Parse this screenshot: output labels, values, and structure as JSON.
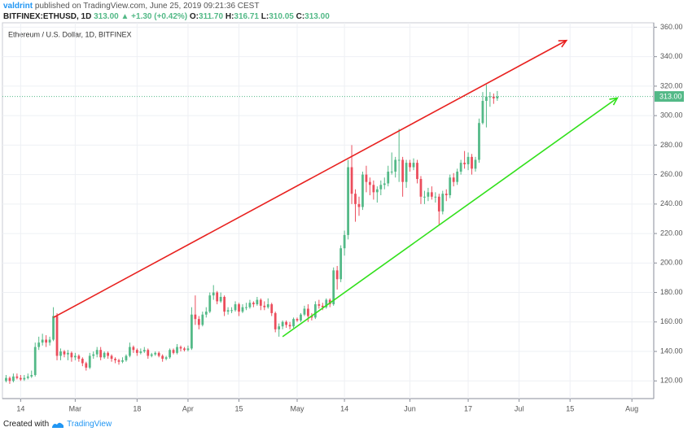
{
  "header": {
    "author": "valdrint",
    "published": "published on TradingView.com, June 25, 2019 09:21:36 CEST",
    "symbol": "BITFINEX:ETHUSD, 1D",
    "last": "313.00",
    "change": "▲ +1.30 (+0.42%)",
    "quote": [
      {
        "label": "O:",
        "value": "311.70"
      },
      {
        "label": "H:",
        "value": "316.71"
      },
      {
        "label": "L:",
        "value": "310.05"
      },
      {
        "label": "C:",
        "value": "313.00"
      }
    ]
  },
  "footer": {
    "text": "Created with",
    "brand": "TradingView"
  },
  "chart_data": {
    "type": "candlestick",
    "title": "Ethereum / U.S. Dollar, 1D, BITFINEX",
    "up_color": "#53b987",
    "down_color": "#eb4d5c",
    "grid": true,
    "xlim": [
      "02-09",
      "08-07"
    ],
    "xticks": [
      {
        "value": "02-14",
        "label": "14"
      },
      {
        "value": "03-01",
        "label": "Mar"
      },
      {
        "value": "03-18",
        "label": "18"
      },
      {
        "value": "04-01",
        "label": "Apr"
      },
      {
        "value": "04-15",
        "label": "15"
      },
      {
        "value": "05-01",
        "label": "May"
      },
      {
        "value": "05-14",
        "label": "14"
      },
      {
        "value": "06-01",
        "label": "Jun"
      },
      {
        "value": "06-17",
        "label": "17"
      },
      {
        "value": "07-01",
        "label": "Jul"
      },
      {
        "value": "07-15",
        "label": "15"
      },
      {
        "value": "08-01",
        "label": "Aug"
      }
    ],
    "ylim": [
      108,
      363
    ],
    "yticks": [
      {
        "value": 120,
        "label": "120.00"
      },
      {
        "value": 140,
        "label": "140.00"
      },
      {
        "value": 160,
        "label": "160.00"
      },
      {
        "value": 180,
        "label": "180.00"
      },
      {
        "value": 200,
        "label": "200.00"
      },
      {
        "value": 220,
        "label": "220.00"
      },
      {
        "value": 240,
        "label": "240.00"
      },
      {
        "value": 260,
        "label": "260.00"
      },
      {
        "value": 280,
        "label": "280.00"
      },
      {
        "value": 300,
        "label": "300.00"
      },
      {
        "value": 320,
        "label": "320.00"
      },
      {
        "value": 340,
        "label": "340.00"
      },
      {
        "value": 360,
        "label": "360.00"
      }
    ],
    "current_price": {
      "value": 313,
      "label": "313.00",
      "color": "#53b987"
    },
    "trend_lines": [
      {
        "color": "#e8211f",
        "x": [
          "02-23",
          "07-14"
        ],
        "y": [
          163,
          351
        ]
      },
      {
        "color": "#32e01c",
        "x": [
          "04-27",
          "07-28"
        ],
        "y": [
          150,
          312
        ]
      }
    ],
    "x": [
      "02-10",
      "02-11",
      "02-12",
      "02-13",
      "02-14",
      "02-15",
      "02-16",
      "02-17",
      "02-18",
      "02-19",
      "02-20",
      "02-21",
      "02-22",
      "02-23",
      "02-24",
      "02-25",
      "02-26",
      "02-27",
      "02-28",
      "03-01",
      "03-02",
      "03-03",
      "03-04",
      "03-05",
      "03-06",
      "03-07",
      "03-08",
      "03-09",
      "03-10",
      "03-11",
      "03-12",
      "03-13",
      "03-14",
      "03-15",
      "03-16",
      "03-17",
      "03-18",
      "03-19",
      "03-20",
      "03-21",
      "03-22",
      "03-23",
      "03-24",
      "03-25",
      "03-26",
      "03-27",
      "03-28",
      "03-29",
      "03-30",
      "03-31",
      "04-01",
      "04-02",
      "04-03",
      "04-04",
      "04-05",
      "04-06",
      "04-07",
      "04-08",
      "04-09",
      "04-10",
      "04-11",
      "04-12",
      "04-13",
      "04-14",
      "04-15",
      "04-16",
      "04-17",
      "04-18",
      "04-19",
      "04-20",
      "04-21",
      "04-22",
      "04-23",
      "04-24",
      "04-25",
      "04-26",
      "04-27",
      "04-28",
      "04-29",
      "04-30",
      "05-01",
      "05-02",
      "05-03",
      "05-04",
      "05-05",
      "05-06",
      "05-07",
      "05-08",
      "05-09",
      "05-10",
      "05-11",
      "05-12",
      "05-13",
      "05-14",
      "05-15",
      "05-16",
      "05-17",
      "05-18",
      "05-19",
      "05-20",
      "05-21",
      "05-22",
      "05-23",
      "05-24",
      "05-25",
      "05-26",
      "05-27",
      "05-28",
      "05-29",
      "05-30",
      "05-31",
      "06-01",
      "06-02",
      "06-03",
      "06-04",
      "06-05",
      "06-06",
      "06-07",
      "06-08",
      "06-09",
      "06-10",
      "06-11",
      "06-12",
      "06-13",
      "06-14",
      "06-15",
      "06-16",
      "06-17",
      "06-18",
      "06-19",
      "06-20",
      "06-21",
      "06-22",
      "06-23",
      "06-24",
      "06-25"
    ],
    "ohlc": [
      [
        120,
        124,
        119,
        122
      ],
      [
        122,
        123,
        118,
        120
      ],
      [
        120,
        125,
        119,
        123
      ],
      [
        123,
        125,
        121,
        122
      ],
      [
        122,
        124,
        120,
        121
      ],
      [
        121,
        124,
        120,
        122
      ],
      [
        122,
        125,
        121,
        123
      ],
      [
        123,
        127,
        122,
        124
      ],
      [
        124,
        146,
        123,
        143
      ],
      [
        143,
        150,
        141,
        146
      ],
      [
        146,
        152,
        144,
        148
      ],
      [
        148,
        151,
        143,
        146
      ],
      [
        146,
        150,
        144,
        148
      ],
      [
        148,
        170,
        147,
        164
      ],
      [
        164,
        166,
        134,
        137
      ],
      [
        137,
        142,
        134,
        140
      ],
      [
        140,
        141,
        136,
        138
      ],
      [
        138,
        141,
        134,
        139
      ],
      [
        139,
        140,
        133,
        136
      ],
      [
        136,
        139,
        134,
        137
      ],
      [
        137,
        138,
        133,
        135
      ],
      [
        135,
        136,
        130,
        132
      ],
      [
        132,
        133,
        127,
        129
      ],
      [
        129,
        139,
        128,
        137
      ],
      [
        137,
        140,
        135,
        138
      ],
      [
        138,
        143,
        136,
        141
      ],
      [
        141,
        143,
        134,
        136
      ],
      [
        136,
        140,
        135,
        139
      ],
      [
        139,
        140,
        135,
        137
      ],
      [
        137,
        138,
        133,
        135
      ],
      [
        135,
        136,
        132,
        134
      ],
      [
        134,
        135,
        131,
        133
      ],
      [
        133,
        136,
        132,
        134
      ],
      [
        134,
        138,
        133,
        137
      ],
      [
        137,
        146,
        136,
        143
      ],
      [
        143,
        144,
        139,
        141
      ],
      [
        141,
        142,
        137,
        139
      ],
      [
        139,
        142,
        138,
        140
      ],
      [
        140,
        143,
        139,
        141
      ],
      [
        141,
        142,
        135,
        137
      ],
      [
        137,
        139,
        136,
        138
      ],
      [
        138,
        140,
        137,
        139
      ],
      [
        139,
        140,
        136,
        137
      ],
      [
        137,
        138,
        133,
        135
      ],
      [
        135,
        137,
        134,
        136
      ],
      [
        136,
        142,
        135,
        141
      ],
      [
        141,
        142,
        138,
        139
      ],
      [
        139,
        145,
        138,
        143
      ],
      [
        143,
        144,
        140,
        142
      ],
      [
        142,
        143,
        140,
        141
      ],
      [
        141,
        144,
        140,
        142
      ],
      [
        142,
        170,
        141,
        165
      ],
      [
        165,
        178,
        158,
        162
      ],
      [
        162,
        164,
        155,
        158
      ],
      [
        158,
        167,
        157,
        165
      ],
      [
        165,
        170,
        163,
        167
      ],
      [
        167,
        180,
        166,
        178
      ],
      [
        178,
        185,
        175,
        180
      ],
      [
        180,
        181,
        172,
        174
      ],
      [
        174,
        180,
        173,
        177
      ],
      [
        177,
        178,
        164,
        167
      ],
      [
        167,
        170,
        165,
        168
      ],
      [
        168,
        170,
        166,
        168
      ],
      [
        168,
        174,
        167,
        172
      ],
      [
        172,
        173,
        164,
        167
      ],
      [
        167,
        172,
        166,
        170
      ],
      [
        170,
        173,
        168,
        170
      ],
      [
        170,
        175,
        169,
        173
      ],
      [
        173,
        174,
        170,
        172
      ],
      [
        172,
        177,
        171,
        175
      ],
      [
        175,
        176,
        168,
        171
      ],
      [
        171,
        174,
        168,
        170
      ],
      [
        170,
        176,
        169,
        172
      ],
      [
        172,
        173,
        164,
        166
      ],
      [
        166,
        167,
        153,
        155
      ],
      [
        155,
        159,
        150,
        157
      ],
      [
        157,
        161,
        155,
        160
      ],
      [
        160,
        161,
        156,
        158
      ],
      [
        158,
        160,
        155,
        157
      ],
      [
        157,
        163,
        156,
        162
      ],
      [
        162,
        163,
        160,
        161
      ],
      [
        161,
        166,
        160,
        165
      ],
      [
        165,
        171,
        164,
        169
      ],
      [
        169,
        172,
        160,
        164
      ],
      [
        164,
        166,
        161,
        163
      ],
      [
        163,
        174,
        162,
        172
      ],
      [
        172,
        175,
        169,
        171
      ],
      [
        171,
        173,
        168,
        170
      ],
      [
        170,
        176,
        169,
        175
      ],
      [
        175,
        176,
        170,
        172
      ],
      [
        172,
        197,
        171,
        195
      ],
      [
        195,
        198,
        182,
        189
      ],
      [
        189,
        212,
        187,
        210
      ],
      [
        210,
        222,
        205,
        219
      ],
      [
        219,
        270,
        216,
        265
      ],
      [
        265,
        280,
        240,
        247
      ],
      [
        247,
        250,
        228,
        240
      ],
      [
        240,
        245,
        232,
        238
      ],
      [
        238,
        262,
        236,
        260
      ],
      [
        260,
        266,
        248,
        255
      ],
      [
        255,
        258,
        246,
        253
      ],
      [
        253,
        256,
        243,
        248
      ],
      [
        248,
        252,
        241,
        250
      ],
      [
        250,
        256,
        246,
        253
      ],
      [
        253,
        258,
        250,
        254
      ],
      [
        254,
        266,
        252,
        262
      ],
      [
        262,
        275,
        260,
        262
      ],
      [
        262,
        272,
        258,
        270
      ],
      [
        270,
        291,
        255,
        270
      ],
      [
        270,
        272,
        245,
        255
      ],
      [
        255,
        270,
        251,
        268
      ],
      [
        268,
        270,
        262,
        265
      ],
      [
        265,
        271,
        263,
        268
      ],
      [
        268,
        270,
        254,
        257
      ],
      [
        257,
        259,
        240,
        245
      ],
      [
        245,
        249,
        240,
        245
      ],
      [
        245,
        251,
        242,
        248
      ],
      [
        248,
        252,
        243,
        245
      ],
      [
        245,
        248,
        241,
        245
      ],
      [
        245,
        247,
        226,
        235
      ],
      [
        235,
        249,
        233,
        247
      ],
      [
        247,
        250,
        242,
        246
      ],
      [
        246,
        260,
        244,
        258
      ],
      [
        258,
        261,
        252,
        255
      ],
      [
        255,
        264,
        253,
        262
      ],
      [
        262,
        270,
        260,
        268
      ],
      [
        268,
        276,
        264,
        267
      ],
      [
        267,
        275,
        263,
        272
      ],
      [
        272,
        274,
        260,
        264
      ],
      [
        264,
        272,
        262,
        270
      ],
      [
        270,
        298,
        268,
        295
      ],
      [
        295,
        316,
        294,
        310
      ],
      [
        310,
        321,
        292,
        313
      ],
      [
        313,
        316,
        306,
        313
      ],
      [
        313,
        315,
        308,
        311.7
      ],
      [
        311.7,
        316.71,
        310.05,
        313
      ]
    ]
  }
}
